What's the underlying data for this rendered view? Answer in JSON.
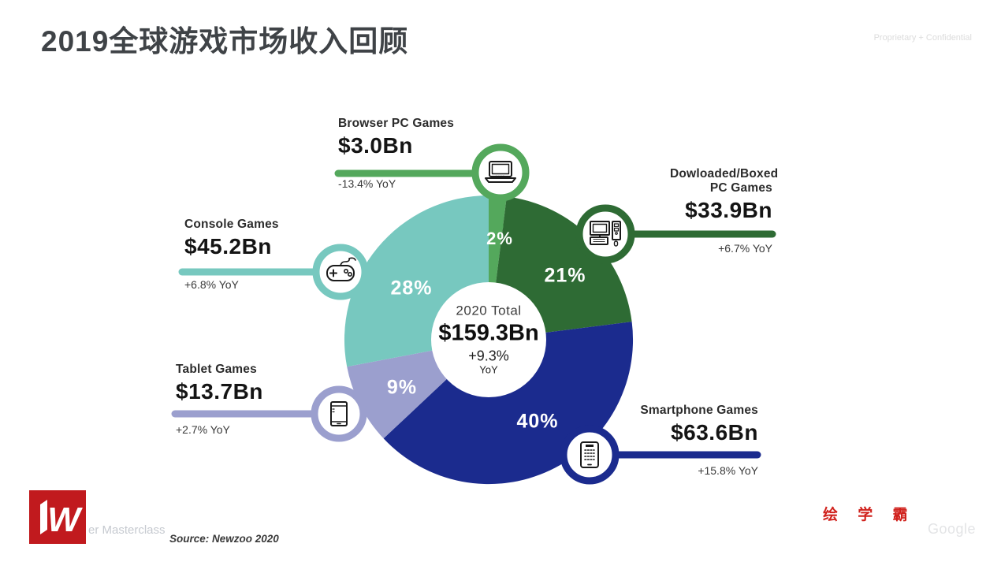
{
  "slide": {
    "title": "2019全球游戏市场收入回顾",
    "corner_note": "Proprietary + Confidential"
  },
  "chart_data": {
    "type": "pie",
    "subtype": "donut",
    "title": "2019全球游戏市场收入回顾",
    "direction": "clockwise",
    "start_angle_deg": 0,
    "center": {
      "label": "2020 Total",
      "value": "$159.3Bn",
      "growth": "+9.3%",
      "growth_unit": "YoY"
    },
    "categories": [
      "Browser PC Games",
      "Dowloaded/Boxed PC Games",
      "Smartphone Games",
      "Tablet Games",
      "Console Games"
    ],
    "values": [
      2,
      21,
      40,
      9,
      28
    ],
    "segments": [
      {
        "name": "Browser PC Games",
        "share_pct": 2,
        "share_label": "2%",
        "revenue": "$3.0Bn",
        "yoy": "-13.4% YoY",
        "color": "#54A85C"
      },
      {
        "name": "Dowloaded/Boxed PC Games",
        "share_pct": 21,
        "share_label": "21%",
        "revenue": "$33.9Bn",
        "yoy": "+6.7% YoY",
        "color": "#2E6B34"
      },
      {
        "name": "Smartphone Games",
        "share_pct": 40,
        "share_label": "40%",
        "revenue": "$63.6Bn",
        "yoy": "+15.8% YoY",
        "color": "#1B2B8E"
      },
      {
        "name": "Tablet Games",
        "share_pct": 9,
        "share_label": "9%",
        "revenue": "$13.7Bn",
        "yoy": "+2.7% YoY",
        "color": "#9B9FCE"
      },
      {
        "name": "Console Games",
        "share_pct": 28,
        "share_label": "28%",
        "revenue": "$45.2Bn",
        "yoy": "+6.8% YoY",
        "color": "#77C8BF"
      }
    ],
    "source": "Source: Newzoo 2020"
  },
  "footer": {
    "logo_letter": "W",
    "masterclass": "er Masterclass",
    "source": "Source: Newzoo 2020",
    "brand_cn": "绘 学 霸",
    "google": "Google"
  }
}
